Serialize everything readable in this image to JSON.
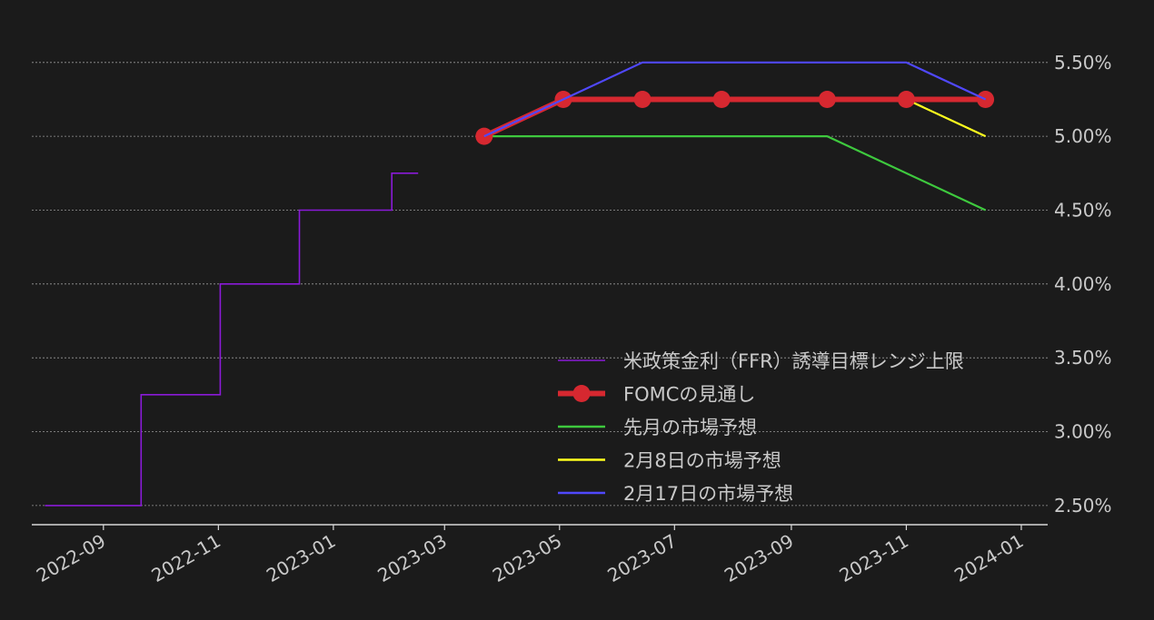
{
  "chart_data": {
    "type": "line",
    "x_axis": {
      "type": "date",
      "range": [
        "2022-07-25",
        "2024-01-15"
      ],
      "ticks": [
        "2022-09",
        "2022-11",
        "2023-01",
        "2023-03",
        "2023-05",
        "2023-07",
        "2023-09",
        "2023-11",
        "2024-01"
      ]
    },
    "y_axis": {
      "position": "right",
      "range": [
        2.37,
        5.8
      ],
      "ticks": [
        "2.50%",
        "3.00%",
        "3.50%",
        "4.00%",
        "4.50%",
        "5.00%",
        "5.50%"
      ],
      "tick_values": [
        2.5,
        3.0,
        3.5,
        4.0,
        4.5,
        5.0,
        5.5
      ]
    },
    "grid": "horizontal-dashed",
    "legend_placement": "bottom-right",
    "series": [
      {
        "name": "米政策金利（FFR）誘導目標レンジ上限",
        "color": "#8a1ad8",
        "style": "step",
        "points": [
          [
            "2022-08-01",
            2.5
          ],
          [
            "2022-09-21",
            2.5
          ],
          [
            "2022-09-21",
            3.25
          ],
          [
            "2022-11-02",
            3.25
          ],
          [
            "2022-11-02",
            4.0
          ],
          [
            "2022-12-14",
            4.0
          ],
          [
            "2022-12-14",
            4.5
          ],
          [
            "2023-02-01",
            4.5
          ],
          [
            "2023-02-01",
            4.75
          ],
          [
            "2023-02-15",
            4.75
          ]
        ]
      },
      {
        "name": "先月の市場予想",
        "color": "#3ec93e",
        "style": "line",
        "points": [
          [
            "2023-03-22",
            5.0
          ],
          [
            "2023-09-20",
            5.0
          ],
          [
            "2023-12-13",
            4.5
          ]
        ]
      },
      {
        "name": "2月8日の市場予想",
        "color": "#ffff1e",
        "style": "line",
        "points": [
          [
            "2023-03-22",
            5.0
          ],
          [
            "2023-05-03",
            5.25
          ],
          [
            "2023-11-01",
            5.25
          ],
          [
            "2023-12-13",
            5.0
          ]
        ]
      },
      {
        "name": "2月17日の市場予想",
        "color": "#5048ff",
        "style": "line",
        "points": [
          [
            "2023-03-22",
            5.0
          ],
          [
            "2023-06-14",
            5.5
          ],
          [
            "2023-11-01",
            5.5
          ],
          [
            "2023-12-13",
            5.25
          ]
        ]
      },
      {
        "name": "FOMCの見通し",
        "color": "#d62830",
        "style": "line-markers",
        "points": [
          [
            "2023-03-22",
            5.0
          ],
          [
            "2023-05-03",
            5.25
          ],
          [
            "2023-06-14",
            5.25
          ],
          [
            "2023-07-26",
            5.25
          ],
          [
            "2023-09-20",
            5.25
          ],
          [
            "2023-11-01",
            5.25
          ],
          [
            "2023-12-13",
            5.25
          ]
        ]
      }
    ],
    "legend_order": [
      0,
      4,
      1,
      2,
      3
    ]
  }
}
